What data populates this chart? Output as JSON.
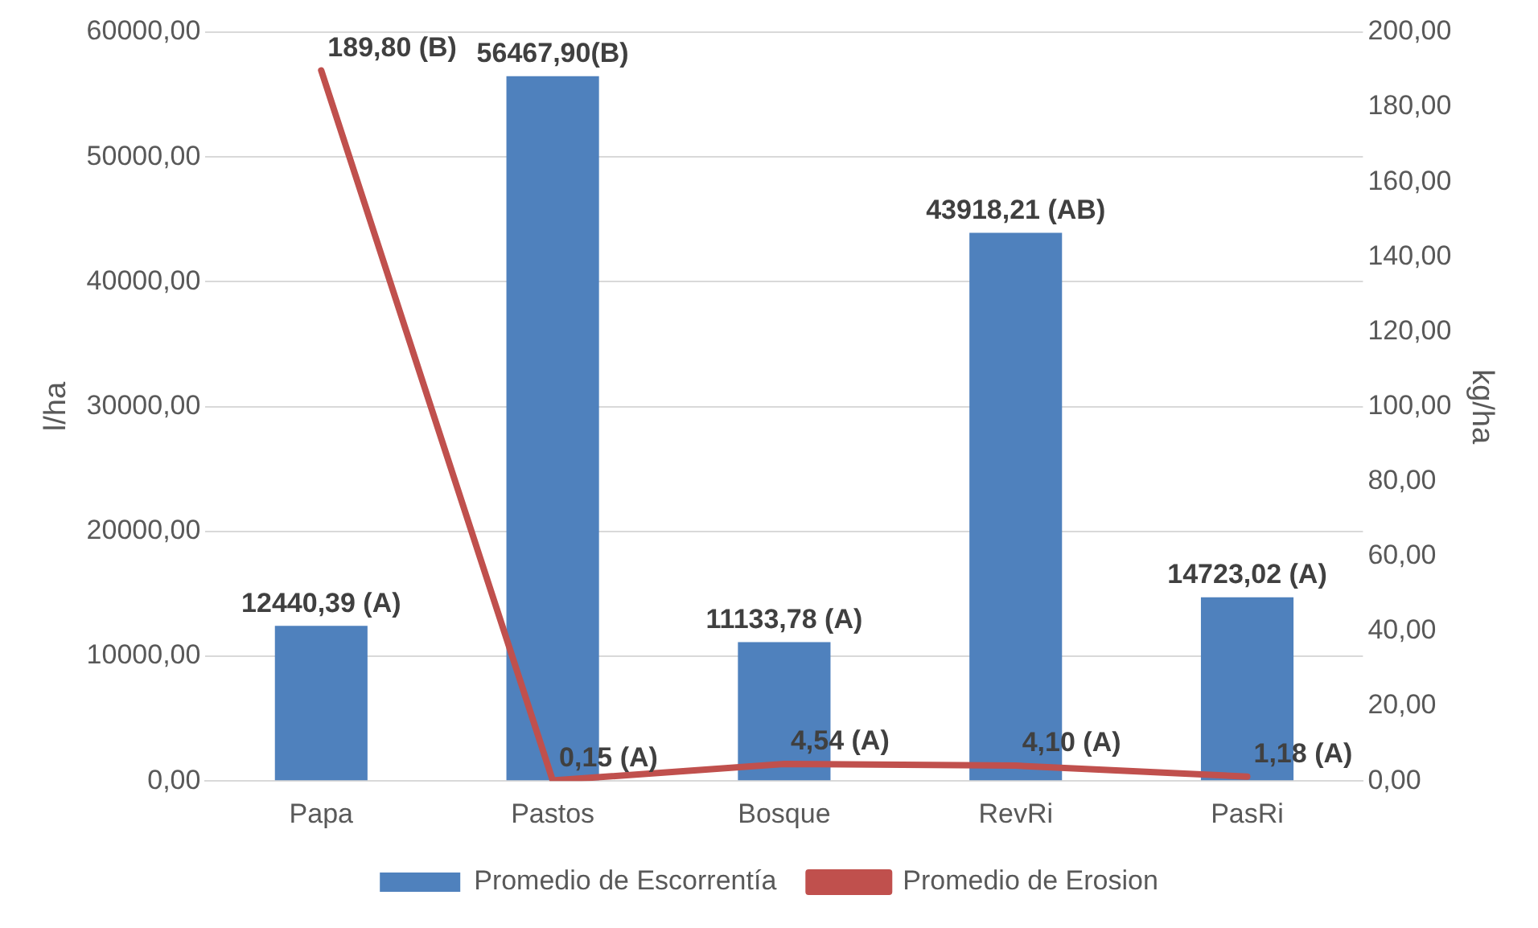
{
  "chart_data": {
    "type": "bar",
    "categories": [
      "Papa",
      "Pastos",
      "Bosque",
      "RevRi",
      "PasRi"
    ],
    "series": [
      {
        "name": "Promedio de Escorrentía",
        "color": "#4f81bd",
        "values": [
          12440.39,
          56467.9,
          11133.78,
          43918.21,
          14723.02
        ],
        "value_labels": [
          "12440,39 (A)",
          "56467,90(B)",
          "11133,78 (A)",
          "43918,21 (AB)",
          "14723,02 (A)"
        ]
      },
      {
        "name": "Promedio de Erosion",
        "type": "line",
        "axis": "y2",
        "color": "#c0504d",
        "values": [
          189.8,
          0.15,
          4.54,
          4.1,
          1.18
        ],
        "value_labels": [
          "189,80 (B)",
          "0,15 (A)",
          "4,54 (A)",
          "4,10 (A)",
          "1,18 (A)"
        ]
      }
    ],
    "ylabel": "l/ha",
    "y2label": "kg/ha",
    "ylim": [
      0,
      60000
    ],
    "yticks": [
      {
        "value": 0,
        "label": "0,00"
      },
      {
        "value": 10000,
        "label": "10000,00"
      },
      {
        "value": 20000,
        "label": "20000,00"
      },
      {
        "value": 30000,
        "label": "30000,00"
      },
      {
        "value": 40000,
        "label": "40000,00"
      },
      {
        "value": 50000,
        "label": "50000,00"
      },
      {
        "value": 60000,
        "label": "60000,00"
      }
    ],
    "y2lim": [
      0,
      200
    ],
    "y2ticks": [
      {
        "value": 0,
        "label": "0,00"
      },
      {
        "value": 20,
        "label": "20,00"
      },
      {
        "value": 40,
        "label": "40,00"
      },
      {
        "value": 60,
        "label": "60,00"
      },
      {
        "value": 80,
        "label": "80,00"
      },
      {
        "value": 100,
        "label": "100,00"
      },
      {
        "value": 120,
        "label": "120,00"
      },
      {
        "value": 140,
        "label": "140,00"
      },
      {
        "value": 160,
        "label": "160,00"
      },
      {
        "value": 180,
        "label": "180,00"
      },
      {
        "value": 200,
        "label": "200,00"
      }
    ],
    "grid": "y",
    "legend": "bottom"
  }
}
